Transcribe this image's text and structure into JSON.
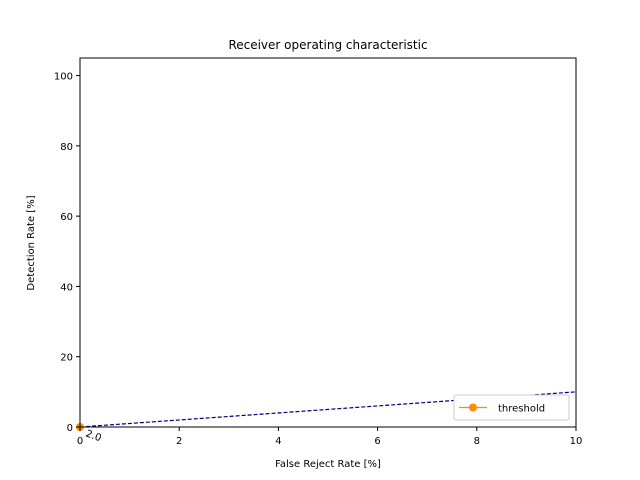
{
  "chart_data": {
    "type": "line",
    "title": "Receiver operating characteristic",
    "xlabel": "False Reject Rate [%]",
    "ylabel": "Detection Rate [%]",
    "xlim": [
      0,
      10
    ],
    "ylim": [
      0,
      105
    ],
    "xticks": [
      0,
      2,
      4,
      6,
      8,
      10
    ],
    "yticks": [
      0,
      20,
      40,
      60,
      80,
      100
    ],
    "grid": false,
    "legend_position": "lower-right",
    "reference_line": {
      "style": "dashed",
      "color": "#000080",
      "x": [
        0,
        10
      ],
      "y": [
        0,
        10
      ]
    },
    "series": [
      {
        "name": "threshold",
        "color": "#ff8c00",
        "marker": "circle",
        "x": [
          0
        ],
        "y": [
          0
        ]
      }
    ],
    "annotations": [
      {
        "text": "2.0",
        "x": 0,
        "y": 0,
        "rotation": 20
      }
    ]
  }
}
